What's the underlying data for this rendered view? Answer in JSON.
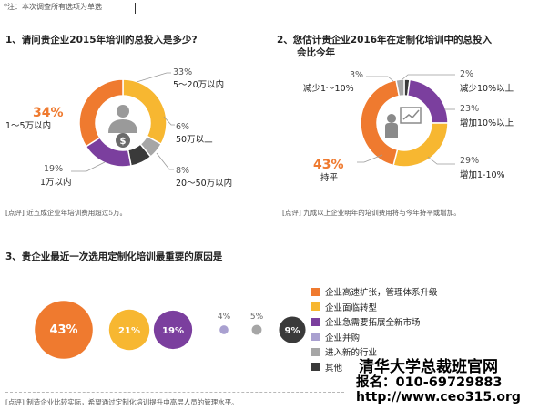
{
  "header_note": "*注：本次调查所有选项为单选",
  "q1": {
    "title": "1、请问贵企业2015年培训的总投入是多少?",
    "slices": [
      {
        "label": "5～20万以内",
        "pct": "33%"
      },
      {
        "label": "50万以上",
        "pct": "6%"
      },
      {
        "label": "20～50万以内",
        "pct": "8%"
      },
      {
        "label": "1万以内",
        "pct": "19%"
      },
      {
        "label": "1～5万以内",
        "pct": "34%"
      }
    ],
    "comment": "[点评] 近五成企业年培训费用超过5万。"
  },
  "q2": {
    "title_line1": "2、您估计贵企业2016年在定制化培训中的总投入",
    "title_line2": "会比今年",
    "slices": [
      {
        "label": "减少10%以上",
        "pct": "2%"
      },
      {
        "label": "增加10%以上",
        "pct": "23%"
      },
      {
        "label": "增加1-10%",
        "pct": "29%"
      },
      {
        "label": "持平",
        "pct": "43%"
      },
      {
        "label": "减少1～10%",
        "pct": "3%"
      }
    ],
    "comment": "[点评] 九成以上企业明年的培训费用将与今年持平或增加。"
  },
  "q3": {
    "title": "3、贵企业最近一次选用定制化培训最重要的原因是",
    "comment": "[点评] 制造企业比较实际，希望通过定制化培训提升中高层人员的管理水平。"
  },
  "legend": [
    {
      "label": "企业高速扩张，管理体系升级",
      "color": "#ef7a2f"
    },
    {
      "label": "企业面临转型",
      "color": "#f7b731"
    },
    {
      "label": "企业急需要拓展全新市场",
      "color": "#7b3f9e"
    },
    {
      "label": "企业并购",
      "color": "#a9a0d0"
    },
    {
      "label": "进入新的行业",
      "color": "#a6a6a6"
    },
    {
      "label": "其他",
      "color": "#3a3a3a"
    }
  ],
  "watermark": {
    "line1": "清华大学总裁班官网",
    "line2": "报名：010-69729883",
    "line3": "http://www.ceo315.org"
  },
  "chart_data": [
    {
      "type": "pie",
      "title": "1、请问贵企业2015年培训的总投入是多少?",
      "categories": [
        "5～20万以内",
        "50万以上",
        "20～50万以内",
        "1万以内",
        "1～5万以内"
      ],
      "values": [
        33,
        6,
        8,
        19,
        34
      ],
      "colors": [
        "#f7b731",
        "#a6a6a6",
        "#3a3a3a",
        "#7b3f9e",
        "#ef7a2f"
      ]
    },
    {
      "type": "pie",
      "title": "2、您估计贵企业2016年在定制化培训中的总投入会比今年",
      "categories": [
        "减少10%以上",
        "增加10%以上",
        "增加1-10%",
        "持平",
        "减少1～10%"
      ],
      "values": [
        2,
        23,
        29,
        43,
        3
      ],
      "colors": [
        "#3a3a3a",
        "#7b3f9e",
        "#f7b731",
        "#ef7a2f",
        "#a6a6a6"
      ]
    },
    {
      "type": "scatter",
      "title": "3、贵企业最近一次选用定制化培训最重要的原因是",
      "categories": [
        "企业高速扩张，管理体系升级",
        "企业面临转型",
        "企业急需要拓展全新市场",
        "企业并购",
        "进入新的行业",
        "其他"
      ],
      "values": [
        43,
        21,
        19,
        4,
        5,
        9
      ],
      "value_labels": [
        "43%",
        "21%",
        "19%",
        "4%",
        "5%",
        "9%"
      ],
      "colors": [
        "#ef7a2f",
        "#f7b731",
        "#7b3f9e",
        "#a9a0d0",
        "#a6a6a6",
        "#3a3a3a"
      ]
    }
  ]
}
